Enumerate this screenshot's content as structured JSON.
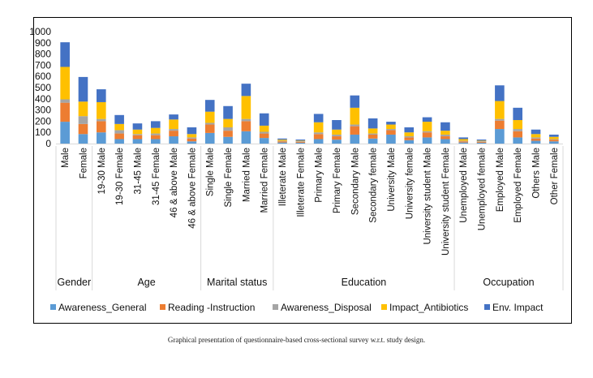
{
  "caption": "Graphical presentation of questionnaire-based cross-sectional survey w.r.t. study design.",
  "chart_data": {
    "type": "bar",
    "stacked": true,
    "title": "",
    "xlabel": "",
    "ylabel": "",
    "ylim": [
      0,
      1000
    ],
    "yticks": [
      0,
      100,
      200,
      300,
      400,
      500,
      600,
      700,
      800,
      900,
      1000
    ],
    "grid": false,
    "legend_position": "bottom",
    "categories": [
      "Male",
      "Female",
      "19-30 Male",
      "19-30 Female",
      "31-45 Male",
      "31-45 Female",
      "46 & above Male",
      "46 & above Female",
      "Single Male",
      "Single Female",
      "Married Male",
      "Married Female",
      "Illeterate Male",
      "Illeterate Female",
      "Primary Male",
      "Primary Female",
      "Secondary Male",
      "Secondary female",
      "University Male",
      "University female",
      "University student Male",
      "University student Female",
      "Unemployed Male",
      "Unemployed female",
      "Employed Male",
      "Employed Female",
      "Others Male",
      "Other Female"
    ],
    "groups": [
      {
        "name": "Gender",
        "start": 0,
        "end": 1
      },
      {
        "name": "Age",
        "start": 2,
        "end": 7
      },
      {
        "name": "Marital status",
        "start": 8,
        "end": 11
      },
      {
        "name": "Education",
        "start": 12,
        "end": 21
      },
      {
        "name": "Occupation",
        "start": 22,
        "end": 27
      }
    ],
    "series": [
      {
        "name": "Awareness_General",
        "color": "#5b9bd5",
        "values": [
          195,
          85,
          100,
          40,
          40,
          40,
          65,
          20,
          95,
          60,
          110,
          50,
          10,
          8,
          40,
          35,
          80,
          45,
          80,
          30,
          55,
          40,
          10,
          8,
          130,
          55,
          25,
          20
        ]
      },
      {
        "name": "Reading -Instruction",
        "color": "#ed7d31",
        "values": [
          170,
          90,
          100,
          50,
          35,
          35,
          50,
          25,
          75,
          55,
          90,
          40,
          10,
          8,
          45,
          30,
          75,
          35,
          40,
          25,
          45,
          25,
          10,
          8,
          75,
          55,
          20,
          15
        ]
      },
      {
        "name": "Awareness_Disposal",
        "color": "#a5a5a5",
        "values": [
          30,
          70,
          20,
          30,
          10,
          15,
          15,
          10,
          15,
          30,
          20,
          15,
          5,
          5,
          15,
          15,
          15,
          10,
          10,
          10,
          10,
          15,
          5,
          5,
          15,
          20,
          10,
          5
        ]
      },
      {
        "name": "Impact_Antibiotics",
        "color": "#ffc000",
        "values": [
          290,
          130,
          150,
          55,
          40,
          50,
          85,
          30,
          100,
          75,
          205,
          55,
          10,
          5,
          90,
          45,
          150,
          45,
          40,
          35,
          85,
          35,
          15,
          5,
          160,
          80,
          30,
          20
        ]
      },
      {
        "name": "Env. Impact",
        "color": "#4472c4",
        "values": [
          220,
          220,
          115,
          80,
          55,
          60,
          45,
          60,
          105,
          115,
          110,
          110,
          10,
          10,
          75,
          85,
          110,
          90,
          25,
          45,
          40,
          75,
          15,
          10,
          140,
          110,
          40,
          20
        ]
      }
    ]
  }
}
